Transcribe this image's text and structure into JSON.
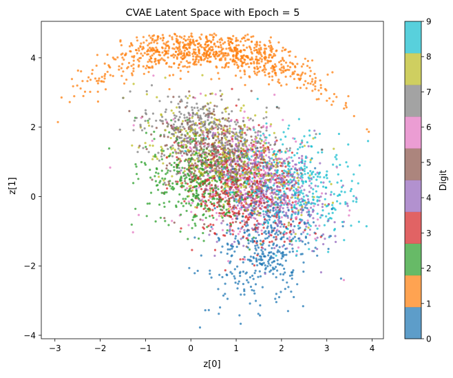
{
  "chart_data": {
    "type": "scatter",
    "title": "CVAE Latent Space with Epoch = 5",
    "xlabel": "z[0]",
    "ylabel": "z[1]",
    "xlim": [
      -3.3,
      4.25
    ],
    "ylim": [
      -4.1,
      5.05
    ],
    "xticks": [
      -3,
      -2,
      -1,
      0,
      1,
      2,
      3,
      4
    ],
    "yticks": [
      -4,
      -2,
      0,
      2,
      4
    ],
    "grid": false,
    "colorbar": {
      "label": "Digit",
      "ticks": [
        0,
        1,
        2,
        3,
        4,
        5,
        6,
        7,
        8,
        9
      ],
      "colors": [
        "#1f77b4",
        "#ff7f0e",
        "#2ca02c",
        "#d62728",
        "#9467bd",
        "#8c564b",
        "#e377c2",
        "#7f7f7f",
        "#bcbd22",
        "#17becf"
      ]
    },
    "series": [
      {
        "digit": 0,
        "color": "#1f77b4",
        "count": 400,
        "clusters": [
          {
            "cx": 1.6,
            "cy": -1.5,
            "sx": 0.55,
            "sy": 0.85,
            "rho": 0.2,
            "w": 1.0
          }
        ]
      },
      {
        "digit": 1,
        "color": "#ff7f0e",
        "count": 900,
        "clusters": [
          {
            "cx": 0.4,
            "cy": 3.75,
            "sx": 1.3,
            "sy": 0.45,
            "rho": -0.75,
            "w": 1.0
          }
        ]
      },
      {
        "digit": 2,
        "color": "#2ca02c",
        "count": 420,
        "clusters": [
          {
            "cx": 0.2,
            "cy": 0.4,
            "sx": 0.6,
            "sy": 0.7,
            "rho": -0.2,
            "w": 1.0
          }
        ]
      },
      {
        "digit": 3,
        "color": "#d62728",
        "count": 450,
        "clusters": [
          {
            "cx": 1.1,
            "cy": 0.2,
            "sx": 0.65,
            "sy": 0.85,
            "rho": -0.2,
            "w": 1.0
          }
        ]
      },
      {
        "digit": 4,
        "color": "#9467bd",
        "count": 420,
        "clusters": [
          {
            "cx": 1.8,
            "cy": 0.1,
            "sx": 0.7,
            "sy": 0.8,
            "rho": -0.3,
            "w": 1.0
          }
        ]
      },
      {
        "digit": 5,
        "color": "#8c564b",
        "count": 420,
        "clusters": [
          {
            "cx": 0.6,
            "cy": 1.0,
            "sx": 0.65,
            "sy": 0.8,
            "rho": -0.3,
            "w": 1.0
          }
        ]
      },
      {
        "digit": 6,
        "color": "#e377c2",
        "count": 400,
        "clusters": [
          {
            "cx": 1.2,
            "cy": 0.6,
            "sx": 0.8,
            "sy": 0.9,
            "rho": -0.3,
            "w": 1.0
          }
        ]
      },
      {
        "digit": 7,
        "color": "#7f7f7f",
        "count": 400,
        "clusters": [
          {
            "cx": 0.3,
            "cy": 1.8,
            "sx": 0.7,
            "sy": 0.6,
            "rho": -0.3,
            "w": 1.0
          }
        ]
      },
      {
        "digit": 8,
        "color": "#bcbd22",
        "count": 420,
        "clusters": [
          {
            "cx": 0.7,
            "cy": 1.1,
            "sx": 0.85,
            "sy": 0.8,
            "rho": -0.4,
            "w": 1.0
          }
        ]
      },
      {
        "digit": 9,
        "color": "#17becf",
        "count": 400,
        "clusters": [
          {
            "cx": 2.3,
            "cy": 0.4,
            "sx": 0.75,
            "sy": 0.75,
            "rho": -0.3,
            "w": 1.0
          }
        ]
      }
    ]
  }
}
